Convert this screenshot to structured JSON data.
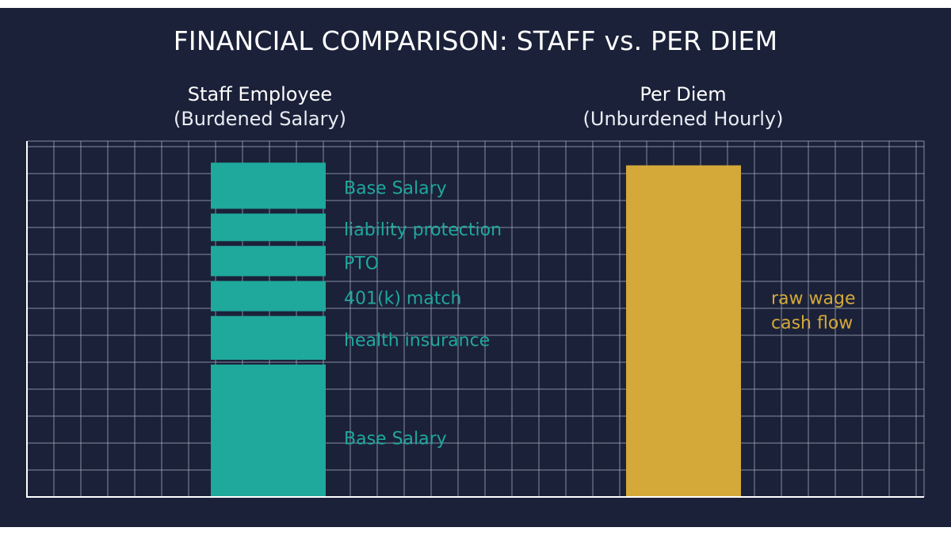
{
  "chart_data": {
    "type": "bar",
    "title": "FINANCIAL COMPARISON: STAFF vs. PER DIEM",
    "grid": true,
    "legend": "none",
    "categories": [
      {
        "name": "Staff Employee",
        "subtitle": "(Burdened Salary)",
        "color": "#1fa89c",
        "segments": [
          {
            "label": "Base Salary",
            "value": 5.0
          },
          {
            "label": "health insurance",
            "value": 1.8
          },
          {
            "label": "401(k) match",
            "value": 1.3
          },
          {
            "label": "PTO",
            "value": 1.3
          },
          {
            "label": "liability protection",
            "value": 1.2
          },
          {
            "label": "Base Salary",
            "value": 1.8
          }
        ]
      },
      {
        "name": "Per Diem",
        "subtitle": "(Unburdened Hourly)",
        "color": "#d4a93a",
        "segments": [
          {
            "label": "raw wage\ncash flow",
            "value": 12.3
          }
        ]
      }
    ],
    "ylim": [
      0,
      13.2
    ]
  },
  "colors": {
    "background": "#1b2139",
    "grid": "#a9b0c2",
    "staff": "#1fa89c",
    "per_diem": "#d4a93a"
  }
}
